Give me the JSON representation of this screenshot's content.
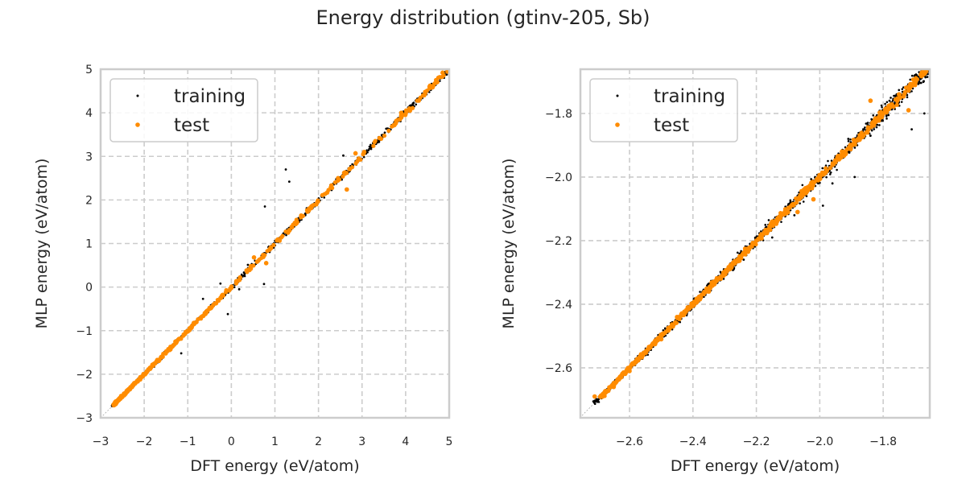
{
  "figure": {
    "title": "Energy distribution (gtinv-205, Sb)"
  },
  "colors": {
    "training": "#000000",
    "test": "#ff8c00",
    "grid": "#cccccc",
    "spine": "#cccccc",
    "diagonal": "#aaaaaa"
  },
  "chart_data": [
    {
      "type": "scatter",
      "title": "",
      "xlabel": "DFT energy (eV/atom)",
      "ylabel": "MLP energy (eV/atom)",
      "xlim": [
        -3,
        5
      ],
      "ylim": [
        -3,
        5
      ],
      "xticks": [
        -3,
        -2,
        -1,
        0,
        1,
        2,
        3,
        4,
        5
      ],
      "yticks": [
        -3,
        -2,
        -1,
        0,
        1,
        2,
        3,
        4,
        5
      ],
      "xtick_labels": [
        "−3",
        "−2",
        "−1",
        "0",
        "1",
        "2",
        "3",
        "4",
        "5"
      ],
      "ytick_labels": [
        "−3",
        "−2",
        "−1",
        "0",
        "1",
        "2",
        "3",
        "4",
        "5"
      ],
      "grid": true,
      "grid_style": "dashed",
      "legend": {
        "placement": "top-left",
        "entries": [
          "training",
          "test"
        ]
      },
      "diagonal": "y = x",
      "series": [
        {
          "name": "training",
          "marker": "small dot",
          "description": "dense points along y=x from about -2.7 to 4.9 with scattered outliers",
          "points": [
            [
              -2.7,
              -2.7
            ],
            [
              -2.5,
              -2.49
            ],
            [
              -2.3,
              -2.31
            ],
            [
              -2.1,
              -2.09
            ],
            [
              -1.9,
              -1.93
            ],
            [
              -1.7,
              -1.68
            ],
            [
              -1.5,
              -1.52
            ],
            [
              -1.3,
              -1.31
            ],
            [
              -1.1,
              -1.08
            ],
            [
              -0.9,
              -0.93
            ],
            [
              -0.7,
              -0.68
            ],
            [
              -0.5,
              -0.52
            ],
            [
              -0.3,
              -0.31
            ],
            [
              -0.1,
              -0.08
            ],
            [
              0.1,
              0.1
            ],
            [
              0.3,
              0.27
            ],
            [
              0.5,
              0.5
            ],
            [
              0.7,
              0.72
            ],
            [
              0.9,
              0.88
            ],
            [
              1.1,
              1.12
            ],
            [
              1.3,
              1.28
            ],
            [
              1.5,
              1.52
            ],
            [
              1.7,
              1.68
            ],
            [
              1.9,
              1.91
            ],
            [
              2.1,
              2.1
            ],
            [
              2.3,
              2.28
            ],
            [
              2.5,
              2.52
            ],
            [
              2.7,
              2.7
            ],
            [
              2.9,
              2.88
            ],
            [
              3.1,
              3.1
            ],
            [
              3.3,
              3.32
            ],
            [
              3.5,
              3.48
            ],
            [
              3.7,
              3.7
            ],
            [
              3.9,
              3.92
            ],
            [
              4.1,
              4.1
            ],
            [
              4.3,
              4.28
            ],
            [
              4.5,
              4.52
            ],
            [
              4.7,
              4.7
            ],
            [
              4.9,
              4.92
            ],
            [
              1.25,
              2.7
            ],
            [
              1.33,
              2.42
            ],
            [
              0.77,
              1.85
            ],
            [
              0.38,
              0.51
            ],
            [
              0.75,
              0.07
            ],
            [
              -0.08,
              -0.62
            ],
            [
              -0.65,
              -0.27
            ],
            [
              -1.15,
              -1.52
            ],
            [
              2.57,
              3.02
            ],
            [
              -0.25,
              0.08
            ],
            [
              0.18,
              -0.05
            ]
          ]
        },
        {
          "name": "test",
          "marker": "orange dot",
          "description": "points along y=x, dense from -2.7 to -0.8, sparser above",
          "points": [
            [
              -2.68,
              -2.68
            ],
            [
              -2.55,
              -2.54
            ],
            [
              -2.4,
              -2.41
            ],
            [
              -2.25,
              -2.24
            ],
            [
              -2.1,
              -2.1
            ],
            [
              -1.95,
              -1.96
            ],
            [
              -1.8,
              -1.78
            ],
            [
              -1.65,
              -1.67
            ],
            [
              -1.5,
              -1.49
            ],
            [
              -1.35,
              -1.36
            ],
            [
              -1.2,
              -1.19
            ],
            [
              -1.0,
              -1.02
            ],
            [
              -0.85,
              -0.82
            ],
            [
              -0.7,
              -0.72
            ],
            [
              -0.5,
              -0.48
            ],
            [
              -0.35,
              -0.37
            ],
            [
              -0.2,
              -0.18
            ],
            [
              0.0,
              -0.02
            ],
            [
              0.2,
              0.22
            ],
            [
              0.45,
              0.48
            ],
            [
              0.52,
              0.68
            ],
            [
              0.8,
              0.55
            ],
            [
              0.9,
              0.9
            ],
            [
              1.05,
              1.07
            ],
            [
              1.3,
              1.25
            ],
            [
              1.5,
              1.48
            ],
            [
              1.75,
              1.73
            ],
            [
              1.95,
              1.9
            ],
            [
              2.2,
              2.17
            ],
            [
              2.45,
              2.5
            ],
            [
              2.65,
              2.24
            ],
            [
              2.6,
              2.62
            ],
            [
              2.85,
              3.07
            ],
            [
              3.05,
              3.1
            ],
            [
              3.4,
              3.42
            ],
            [
              3.9,
              4.0
            ],
            [
              4.1,
              4.05
            ],
            [
              4.3,
              4.28
            ],
            [
              4.55,
              4.6
            ],
            [
              4.7,
              4.75
            ],
            [
              4.85,
              4.92
            ]
          ]
        }
      ]
    },
    {
      "type": "scatter",
      "title": "",
      "xlabel": "DFT energy (eV/atom)",
      "ylabel": "MLP energy (eV/atom)",
      "xlim": [
        -2.755,
        -1.653
      ],
      "ylim": [
        -2.757,
        -1.661
      ],
      "xticks": [
        -2.6,
        -2.4,
        -2.2,
        -2.0,
        -1.8
      ],
      "yticks": [
        -2.6,
        -2.4,
        -2.2,
        -2.0,
        -1.8
      ],
      "xtick_labels": [
        "−2.6",
        "−2.4",
        "−2.2",
        "−2.0",
        "−1.8"
      ],
      "ytick_labels": [
        "−2.6",
        "−2.4",
        "−2.2",
        "−2.0",
        "−1.8"
      ],
      "grid": true,
      "grid_style": "dashed",
      "legend": {
        "placement": "top-left",
        "entries": [
          "training",
          "test"
        ]
      },
      "diagonal": "y = x",
      "series": [
        {
          "name": "training",
          "marker": "small dot",
          "description": "dense band along y=x from about -2.7 to -1.66, widening near top",
          "points": [
            [
              -2.69,
              -2.69
            ],
            [
              -2.62,
              -2.62
            ],
            [
              -2.55,
              -2.56
            ],
            [
              -2.48,
              -2.47
            ],
            [
              -2.42,
              -2.43
            ],
            [
              -2.35,
              -2.34
            ],
            [
              -2.28,
              -2.29
            ],
            [
              -2.22,
              -2.21
            ],
            [
              -2.15,
              -2.16
            ],
            [
              -2.1,
              -2.09
            ],
            [
              -2.04,
              -2.05
            ],
            [
              -1.98,
              -1.99
            ],
            [
              -1.92,
              -1.93
            ],
            [
              -1.86,
              -1.85
            ],
            [
              -1.8,
              -1.81
            ],
            [
              -1.74,
              -1.75
            ],
            [
              -1.68,
              -1.69
            ],
            [
              -1.67,
              -1.8
            ],
            [
              -1.71,
              -1.85
            ],
            [
              -1.89,
              -2.0
            ],
            [
              -1.96,
              -2.02
            ],
            [
              -1.99,
              -2.09
            ],
            [
              -2.15,
              -2.19
            ],
            [
              -2.08,
              -2.12
            ],
            [
              -1.84,
              -1.87
            ],
            [
              -1.91,
              -1.88
            ],
            [
              -1.78,
              -1.76
            ],
            [
              -2.24,
              -2.26
            ]
          ]
        },
        {
          "name": "test",
          "marker": "orange dot",
          "description": "dense band along y=x from about -2.71 to -1.66",
          "points": [
            [
              -2.71,
              -2.69
            ],
            [
              -2.65,
              -2.66
            ],
            [
              -2.6,
              -2.61
            ],
            [
              -2.55,
              -2.55
            ],
            [
              -2.5,
              -2.51
            ],
            [
              -2.45,
              -2.44
            ],
            [
              -2.4,
              -2.4
            ],
            [
              -2.35,
              -2.36
            ],
            [
              -2.3,
              -2.3
            ],
            [
              -2.25,
              -2.25
            ],
            [
              -2.2,
              -2.2
            ],
            [
              -2.15,
              -2.14
            ],
            [
              -2.1,
              -2.11
            ],
            [
              -2.05,
              -2.04
            ],
            [
              -2.0,
              -2.0
            ],
            [
              -1.95,
              -1.95
            ],
            [
              -1.9,
              -1.9
            ],
            [
              -1.85,
              -1.86
            ],
            [
              -1.8,
              -1.8
            ],
            [
              -1.75,
              -1.74
            ],
            [
              -1.7,
              -1.71
            ],
            [
              -1.67,
              -1.67
            ],
            [
              -2.07,
              -2.11
            ],
            [
              -2.02,
              -2.07
            ],
            [
              -1.84,
              -1.76
            ],
            [
              -1.72,
              -1.79
            ],
            [
              -1.93,
              -1.92
            ],
            [
              -2.62,
              -2.62
            ]
          ]
        }
      ]
    }
  ]
}
